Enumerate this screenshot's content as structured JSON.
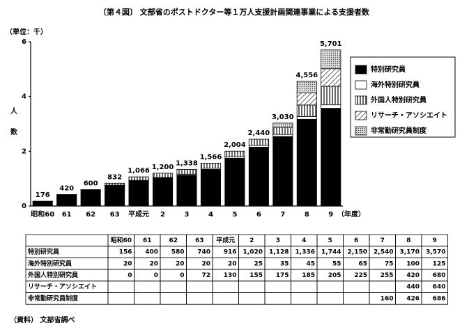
{
  "chart_data": {
    "type": "stacked-bar",
    "title": "〔第４図〕 文部省のポストドクター等１万人支援計画関連事業による支援者数",
    "unit_label": "（単位：千）",
    "y_label": "人数",
    "x_label": "（年度）",
    "source": "（資料） 文部省調べ",
    "categories": [
      "昭和60",
      "61",
      "62",
      "63",
      "平成元",
      "2",
      "3",
      "4",
      "5",
      "6",
      "7",
      "8",
      "9"
    ],
    "ylim": [
      0,
      6000
    ],
    "yticks": [
      0,
      {
        "value": 2000,
        "label": "2"
      },
      {
        "value": 4000,
        "label": "4"
      },
      {
        "value": 6000,
        "label": "6"
      }
    ],
    "legend": "right",
    "series": [
      {
        "name": "特別研究員",
        "color": "black",
        "values": [
          156,
          400,
          580,
          740,
          916,
          1020,
          1128,
          1336,
          1744,
          2150,
          2540,
          3170,
          3570
        ],
        "value_labels": [
          "156",
          "400",
          "580",
          "740",
          "916",
          "1,020",
          "1,128",
          "1,336",
          "1,744",
          "2,150",
          "2,540",
          "3,170",
          "3,570"
        ]
      },
      {
        "name": "海外特別研究員",
        "color": "white",
        "values": [
          20,
          20,
          20,
          20,
          20,
          25,
          35,
          45,
          55,
          65,
          75,
          100,
          125
        ],
        "value_labels": [
          "20",
          "20",
          "20",
          "20",
          "20",
          "25",
          "35",
          "45",
          "55",
          "65",
          "75",
          "100",
          "125"
        ]
      },
      {
        "name": "外国人特別研究員",
        "color": "vertical-stripes",
        "values": [
          0,
          0,
          0,
          72,
          130,
          155,
          175,
          185,
          205,
          225,
          255,
          420,
          680
        ],
        "value_labels": [
          "0",
          "0",
          "0",
          "72",
          "130",
          "155",
          "175",
          "185",
          "205",
          "225",
          "255",
          "420",
          "680"
        ]
      },
      {
        "name": "リサーチ・アソシエイト",
        "color": "diagonal-hatch",
        "values": [
          null,
          null,
          null,
          null,
          null,
          null,
          null,
          null,
          null,
          null,
          null,
          440,
          640
        ],
        "value_labels": [
          null,
          null,
          null,
          null,
          null,
          null,
          null,
          null,
          null,
          null,
          null,
          "440",
          "640"
        ]
      },
      {
        "name": "非常勤研究員制度",
        "color": "dots",
        "values": [
          null,
          null,
          null,
          null,
          null,
          null,
          null,
          null,
          null,
          null,
          160,
          426,
          686
        ],
        "value_labels": [
          null,
          null,
          null,
          null,
          null,
          null,
          null,
          null,
          null,
          null,
          "160",
          "426",
          "686"
        ]
      }
    ],
    "totals": {
      "values": [
        176,
        420,
        600,
        832,
        1066,
        1200,
        1338,
        1566,
        2004,
        2440,
        3030,
        4556,
        5701
      ],
      "value_labels": [
        "176",
        "420",
        "600",
        "832",
        "1,066",
        "1,200",
        "1,338",
        "1,566",
        "2,004",
        "2,440",
        "3,030",
        "4,556",
        "5,701"
      ]
    }
  }
}
